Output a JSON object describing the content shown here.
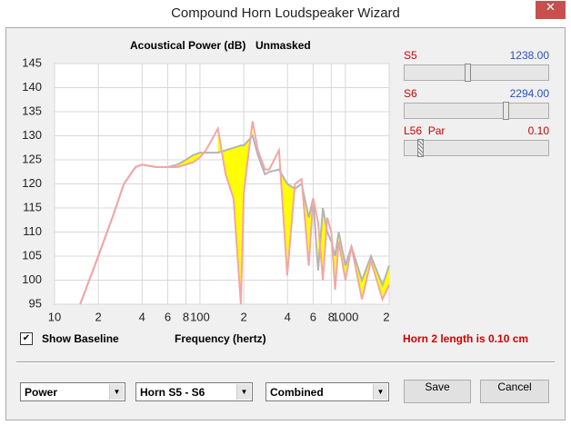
{
  "window": {
    "title": "Compound Horn Loudspeaker Wizard"
  },
  "chart_data": {
    "type": "line",
    "title": "Acoustical Power (dB)",
    "subtitle": "Unmasked",
    "x_label": "Frequency (hertz)",
    "x_log": true,
    "xlim": [
      10,
      2000
    ],
    "xticks": [
      10,
      {
        "value": 20,
        "label": "2"
      },
      {
        "value": 40,
        "label": "4"
      },
      {
        "value": 60,
        "label": "6"
      },
      {
        "value": 80,
        "label": "8"
      },
      100,
      {
        "value": 200,
        "label": "2"
      },
      {
        "value": 400,
        "label": "4"
      },
      {
        "value": 600,
        "label": "6"
      },
      {
        "value": 800,
        "label": "8"
      },
      1000,
      {
        "value": 2000,
        "label": "2"
      }
    ],
    "ylim": [
      95,
      145
    ],
    "yticks": [
      95,
      100,
      105,
      110,
      115,
      120,
      125,
      130,
      135,
      140,
      145
    ],
    "grid": true,
    "fill_color": "#ffff00",
    "x": [
      15,
      20,
      25,
      30,
      36,
      40,
      50,
      60,
      70,
      80,
      90,
      100,
      110,
      125,
      133,
      150,
      170,
      191,
      200,
      215,
      230,
      250,
      280,
      300,
      350,
      398,
      450,
      500,
      560,
      600,
      650,
      700,
      750,
      800,
      850,
      900,
      1000,
      1100,
      1300,
      1500,
      1800,
      2000
    ],
    "series": [
      {
        "color": "#b4b4b4",
        "values": [
          95,
          105,
          113,
          120,
          123.5,
          124,
          123.5,
          123.5,
          124,
          125,
          126,
          126.5,
          126.5,
          126.5,
          126.5,
          127,
          127.5,
          128,
          128,
          129,
          130,
          126,
          122,
          122.5,
          123,
          120,
          119,
          120,
          113,
          117,
          102,
          115,
          110,
          108,
          105,
          110,
          103,
          107,
          100,
          105,
          99,
          103
        ]
      },
      {
        "color": "#f4a6a6",
        "values": [
          95,
          105,
          113,
          120,
          123.5,
          124,
          123.5,
          123.5,
          123.5,
          124,
          124.5,
          125.5,
          127,
          130,
          131.5,
          122,
          117,
          95,
          118,
          126,
          133,
          127,
          123,
          123,
          127,
          101,
          120,
          121,
          103,
          117,
          112,
          100,
          113,
          110,
          98,
          108,
          100,
          107,
          96,
          104,
          96,
          99
        ]
      }
    ]
  },
  "controls": {
    "sliders": [
      {
        "label": "S5",
        "value": "1238.00"
      },
      {
        "label": "S6",
        "value": "2294.00"
      },
      {
        "label": "L56  Par",
        "value": "0.10"
      }
    ],
    "checkbox": "Show Baseline",
    "status": "Horn 2 length is 0.10 cm",
    "dropdowns": [
      "Power",
      "Horn S5 - S6",
      "Combined"
    ],
    "buttons": [
      "Save",
      "Cancel"
    ]
  }
}
